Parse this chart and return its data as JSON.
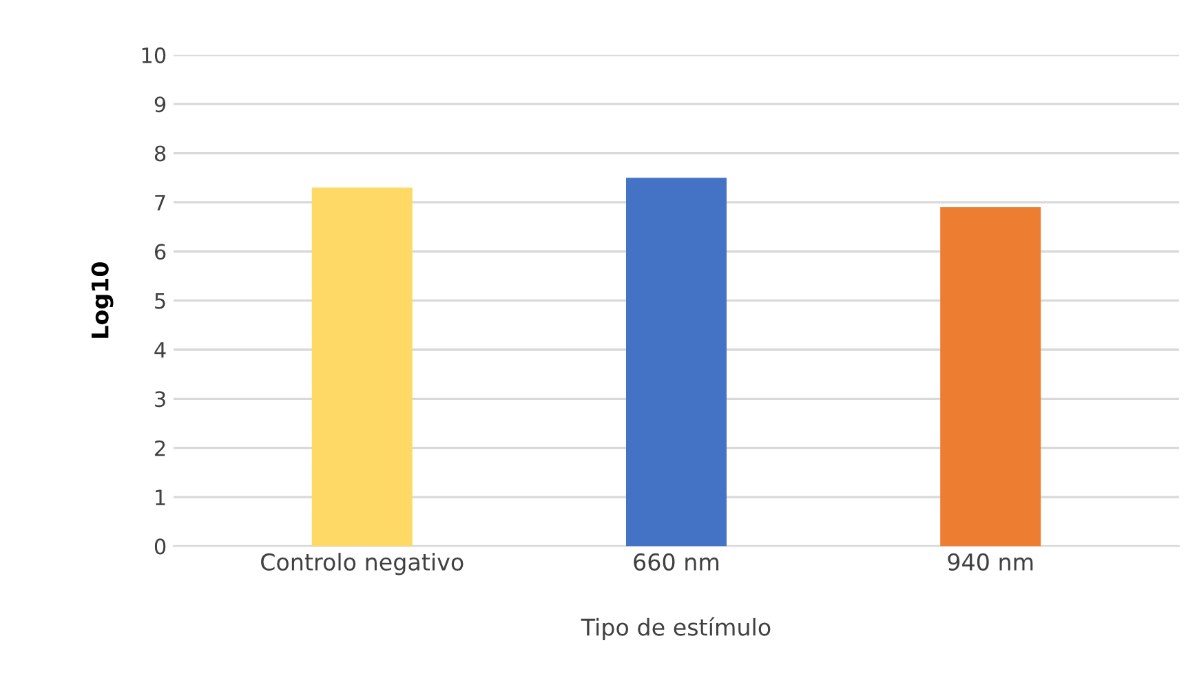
{
  "chart_data": {
    "type": "bar",
    "xlabel": "Tipo de estímulo",
    "ylabel": "Log10",
    "categories": [
      "Controlo negativo",
      "660 nm",
      "940 nm"
    ],
    "values": [
      7.3,
      7.5,
      6.9
    ],
    "colors": [
      "#ffd966",
      "#4472c4",
      "#ed7d31"
    ],
    "ylim": [
      0,
      10
    ],
    "yticks": [
      0,
      1,
      2,
      3,
      4,
      5,
      6,
      7,
      8,
      9,
      10
    ],
    "grid": "y"
  }
}
